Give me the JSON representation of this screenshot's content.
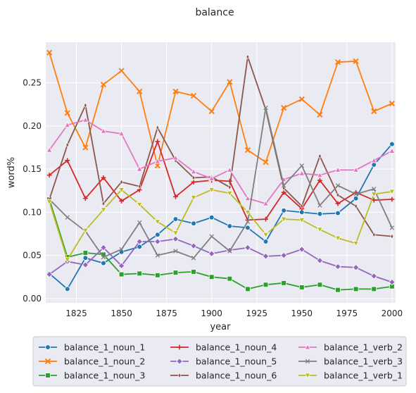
{
  "chart_data": {
    "type": "line",
    "title": "balance",
    "xlabel": "year",
    "ylabel": "word%",
    "xlim": [
      1808,
      2002
    ],
    "ylim": [
      -0.005,
      0.297
    ],
    "xticks": [
      1825,
      1850,
      1875,
      1900,
      1925,
      1950,
      1975,
      2000
    ],
    "yticks": [
      0.0,
      0.05,
      0.1,
      0.15,
      0.2,
      0.25
    ],
    "ytick_labels": [
      "0.00",
      "0.05",
      "0.10",
      "0.15",
      "0.20",
      "0.25"
    ],
    "grid": true,
    "legend_position": "bottom",
    "x": [
      1810,
      1820,
      1830,
      1840,
      1850,
      1860,
      1870,
      1880,
      1890,
      1900,
      1910,
      1920,
      1930,
      1940,
      1950,
      1960,
      1970,
      1980,
      1990,
      2000
    ],
    "series": [
      {
        "name": "balance_1_noun_1",
        "color": "#1f77b4",
        "marker": "circle",
        "values": [
          0.029,
          0.011,
          0.047,
          0.041,
          0.054,
          0.06,
          0.074,
          0.092,
          0.087,
          0.094,
          0.084,
          0.082,
          0.066,
          0.102,
          0.1,
          0.098,
          0.099,
          0.116,
          0.155,
          0.179
        ]
      },
      {
        "name": "balance_1_noun_2",
        "color": "#ff7f0e",
        "marker": "x",
        "values": [
          0.285,
          0.215,
          0.175,
          0.248,
          0.264,
          0.24,
          0.154,
          0.24,
          0.235,
          0.217,
          0.251,
          0.172,
          0.158,
          0.221,
          0.231,
          0.213,
          0.274,
          0.275,
          0.217,
          0.226
        ]
      },
      {
        "name": "balance_1_noun_3",
        "color": "#2ca02c",
        "marker": "square",
        "values": [
          0.115,
          0.048,
          0.053,
          0.051,
          0.028,
          0.029,
          0.027,
          0.03,
          0.031,
          0.025,
          0.023,
          0.011,
          0.016,
          0.018,
          0.013,
          0.016,
          0.01,
          0.011,
          0.011,
          0.014
        ]
      },
      {
        "name": "balance_1_noun_4",
        "color": "#d62728",
        "marker": "plus",
        "values": [
          0.143,
          0.16,
          0.116,
          0.14,
          0.113,
          0.126,
          0.182,
          0.118,
          0.135,
          0.137,
          0.136,
          0.091,
          0.092,
          0.123,
          0.104,
          0.137,
          0.11,
          0.123,
          0.114,
          0.115
        ]
      },
      {
        "name": "balance_1_noun_5",
        "color": "#9467bd",
        "marker": "diamond",
        "values": [
          0.028,
          0.043,
          0.039,
          0.059,
          0.038,
          0.066,
          0.066,
          0.069,
          0.061,
          0.052,
          0.056,
          0.059,
          0.049,
          0.05,
          0.057,
          0.044,
          0.037,
          0.036,
          0.026,
          0.019
        ]
      },
      {
        "name": "balance_1_noun_6",
        "color": "#8c564b",
        "marker": "thin_diamond",
        "values": [
          0.115,
          0.178,
          0.224,
          0.11,
          0.135,
          0.13,
          0.198,
          0.16,
          0.14,
          0.141,
          0.129,
          0.28,
          0.219,
          0.128,
          0.107,
          0.165,
          0.12,
          0.107,
          0.074,
          0.072
        ]
      },
      {
        "name": "balance_1_verb_2",
        "color": "#e377c2",
        "marker": "triangle_up",
        "values": [
          0.172,
          0.201,
          0.207,
          0.194,
          0.191,
          0.15,
          0.159,
          0.163,
          0.147,
          0.139,
          0.149,
          0.116,
          0.11,
          0.138,
          0.145,
          0.143,
          0.149,
          0.149,
          0.16,
          0.171
        ]
      },
      {
        "name": "balance_1_verb_3",
        "color": "#7f7f7f",
        "marker": "x_thin",
        "values": [
          0.115,
          0.094,
          0.078,
          0.048,
          0.057,
          0.088,
          0.05,
          0.055,
          0.047,
          0.072,
          0.055,
          0.089,
          0.221,
          0.131,
          0.154,
          0.108,
          0.131,
          0.121,
          0.127,
          0.082
        ]
      },
      {
        "name": "balance_1_verb_1",
        "color": "#bcbd22",
        "marker": "triangle_down",
        "values": [
          0.112,
          0.045,
          0.079,
          0.103,
          0.126,
          0.109,
          0.089,
          0.076,
          0.117,
          0.126,
          0.122,
          0.1,
          0.074,
          0.092,
          0.091,
          0.08,
          0.07,
          0.064,
          0.121,
          0.124
        ]
      }
    ]
  }
}
